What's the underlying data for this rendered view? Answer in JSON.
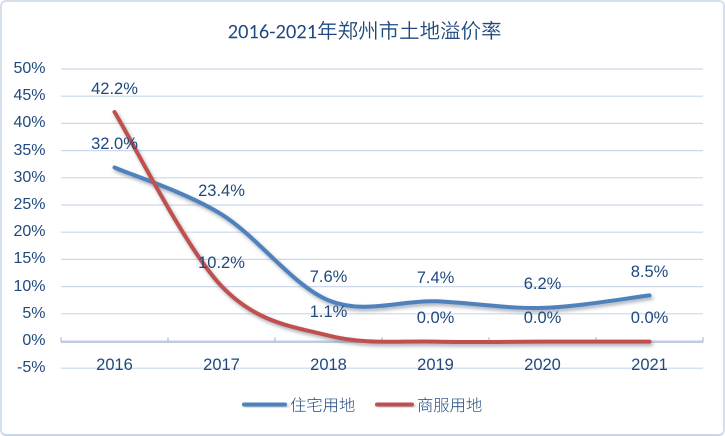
{
  "chart_data": {
    "type": "line",
    "title": "2016-2021年郑州市土地溢价率",
    "categories": [
      "2016",
      "2017",
      "2018",
      "2019",
      "2020",
      "2021"
    ],
    "series": [
      {
        "name": "住宅用地",
        "color": "#4f81bd",
        "values": [
          32.0,
          23.4,
          7.6,
          7.4,
          6.2,
          8.5
        ],
        "labels": [
          "32.0%",
          "23.4%",
          "7.6%",
          "7.4%",
          "6.2%",
          "8.5%"
        ]
      },
      {
        "name": "商服用地",
        "color": "#c0504d",
        "values": [
          42.2,
          10.2,
          1.1,
          0.0,
          0.0,
          0.0
        ],
        "labels": [
          "42.2%",
          "10.2%",
          "1.1%",
          "0.0%",
          "0.0%",
          "0.0%"
        ]
      }
    ],
    "y_ticks": [
      "50%",
      "45%",
      "40%",
      "35%",
      "30%",
      "25%",
      "20%",
      "15%",
      "10%",
      "5%",
      "0%",
      "-5%"
    ],
    "ylim": [
      -5,
      50
    ],
    "y_step": 5,
    "grid": true,
    "smooth": true,
    "legend_position": "bottom",
    "text_color": "#1f497d",
    "gridline_color": "#ccd8e9"
  }
}
